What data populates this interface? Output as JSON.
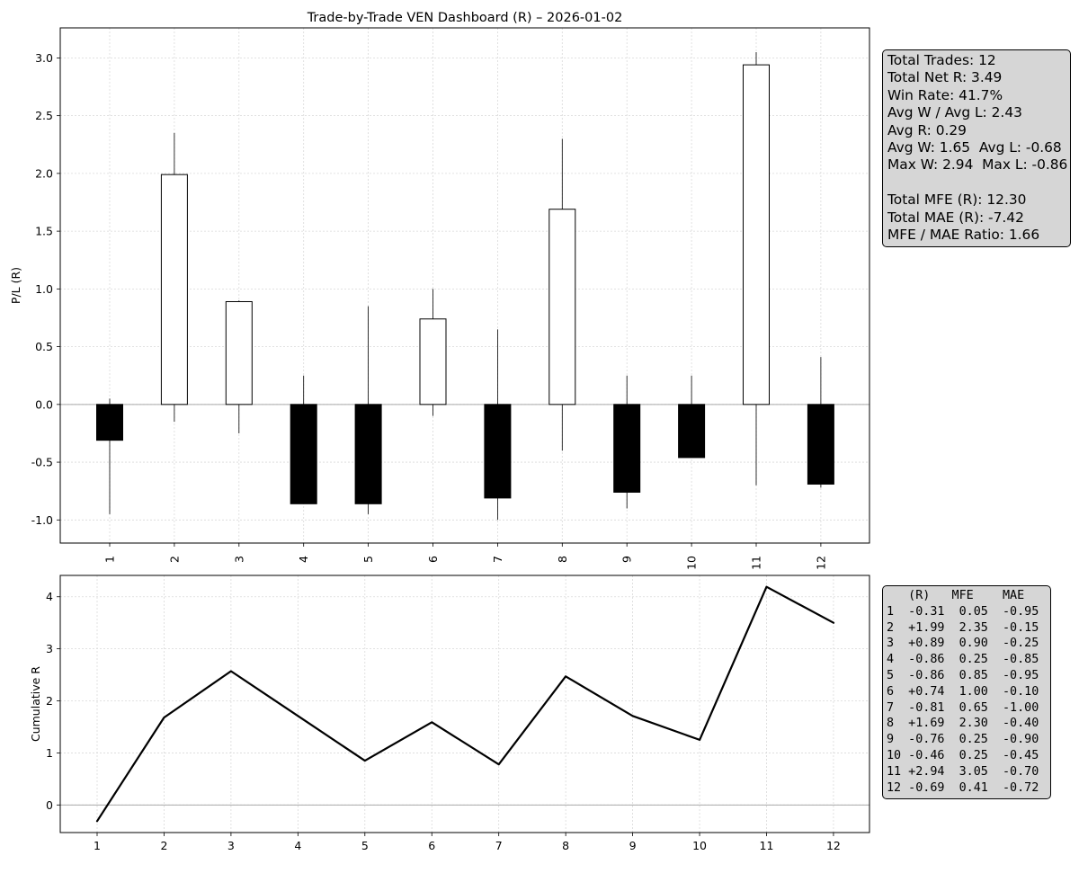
{
  "title": "Trade-by-Trade VEN Dashboard (R) – 2026-01-02",
  "colors": {
    "win": "#ffffff",
    "loss": "#000000",
    "grid": "#d9d9d9",
    "zero": "#aaaaaa",
    "panel": "#d6d6d6"
  },
  "chart_data": [
    {
      "type": "bar",
      "name": "per-trade P/L with MFE/MAE whiskers",
      "categories": [
        "1",
        "2",
        "3",
        "4",
        "5",
        "6",
        "7",
        "8",
        "9",
        "10",
        "11",
        "12"
      ],
      "values": [
        -0.31,
        1.99,
        0.89,
        -0.86,
        -0.86,
        0.74,
        -0.81,
        1.69,
        -0.76,
        -0.46,
        2.94,
        -0.69
      ],
      "mfe": [
        0.05,
        2.35,
        0.9,
        0.25,
        0.85,
        1.0,
        0.65,
        2.3,
        0.25,
        0.25,
        3.05,
        0.41
      ],
      "mae": [
        -0.95,
        -0.15,
        -0.25,
        -0.85,
        -0.95,
        -0.1,
        -1.0,
        -0.4,
        -0.9,
        -0.45,
        -0.7,
        -0.72
      ],
      "ylabel": "P/L (R)",
      "ylim": [
        -1.2,
        3.26
      ],
      "yticks": [
        "-1.0",
        "-0.5",
        "0.0",
        "0.5",
        "1.0",
        "1.5",
        "2.0",
        "2.5",
        "3.0"
      ],
      "ytick_values": [
        -1.0,
        -0.5,
        0.0,
        0.5,
        1.0,
        1.5,
        2.0,
        2.5,
        3.0
      ],
      "grid": true
    },
    {
      "type": "line",
      "name": "cumulative R",
      "x": [
        "1",
        "2",
        "3",
        "4",
        "5",
        "6",
        "7",
        "8",
        "9",
        "10",
        "11",
        "12"
      ],
      "values": [
        -0.31,
        1.68,
        2.57,
        1.71,
        0.85,
        1.59,
        0.78,
        2.47,
        1.71,
        1.25,
        4.19,
        3.5
      ],
      "ylabel": "Cumulative R",
      "ylim": [
        -0.53,
        4.41
      ],
      "yticks": [
        "0",
        "1",
        "2",
        "3",
        "4"
      ],
      "ytick_values": [
        0,
        1,
        2,
        3,
        4
      ],
      "grid": true
    }
  ],
  "stats": [
    "Total Trades: 12",
    "Total Net R: 3.49",
    "Win Rate: 41.7%",
    "Avg W / Avg L: 2.43",
    "Avg R: 0.29",
    "Avg W: 1.65  Avg L: -0.68",
    "Max W: 2.94  Max L: -0.86",
    "",
    "Total MFE (R): 12.30",
    "Total MAE (R): -7.42",
    "MFE / MAE Ratio: 1.66"
  ],
  "trade_table": {
    "header": "   (R)   MFE    MAE",
    "rows": [
      "1  -0.31  0.05  -0.95",
      "2  +1.99  2.35  -0.15",
      "3  +0.89  0.90  -0.25",
      "4  -0.86  0.25  -0.85",
      "5  -0.86  0.85  -0.95",
      "6  +0.74  1.00  -0.10",
      "7  -0.81  0.65  -1.00",
      "8  +1.69  2.30  -0.40",
      "9  -0.76  0.25  -0.90",
      "10 -0.46  0.25  -0.45",
      "11 +2.94  3.05  -0.70",
      "12 -0.69  0.41  -0.72"
    ]
  }
}
